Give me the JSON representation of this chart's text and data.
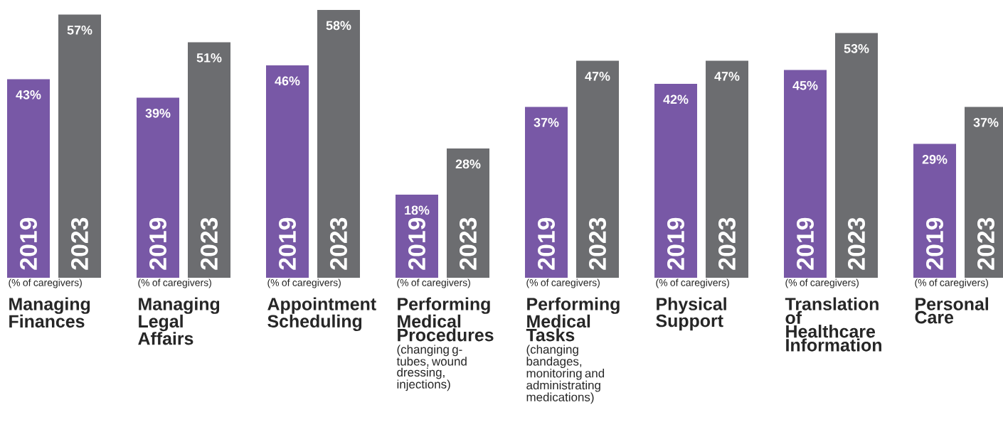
{
  "chart_data": {
    "type": "bar",
    "categories": [
      "Managing Finances",
      "Managing Legal Affairs",
      "Appointment Scheduling",
      "Performing Medical Procedures",
      "Performing Medical Tasks",
      "Physical Support",
      "Translation of Healthcare Information",
      "Personal Care"
    ],
    "series": [
      {
        "name": "2019",
        "color": "#7858a6",
        "values": [
          43,
          39,
          46,
          18,
          37,
          42,
          45,
          29
        ],
        "value_labels": [
          "43%",
          "39%",
          "46%",
          "18%",
          "37%",
          "42%",
          "45%",
          "29%"
        ]
      },
      {
        "name": "2023",
        "color": "#6c6d70",
        "values": [
          57,
          51,
          58,
          28,
          47,
          47,
          53,
          37
        ],
        "value_labels": [
          "57%",
          "51%",
          "58%",
          "28%",
          "47%",
          "47%",
          "53%",
          "37%"
        ]
      }
    ],
    "annotations": [
      "(% of caregivers)",
      "(% of caregivers)",
      "(% of caregivers)",
      "(% of caregivers)",
      "(% of caregivers)",
      "(% of caregivers)",
      "(% of caregivers)",
      "(% of caregivers)",
      "(changing g-tubes, wound dressing, injections)",
      "(changing bandages, monitoring and administrating medications)"
    ]
  }
}
